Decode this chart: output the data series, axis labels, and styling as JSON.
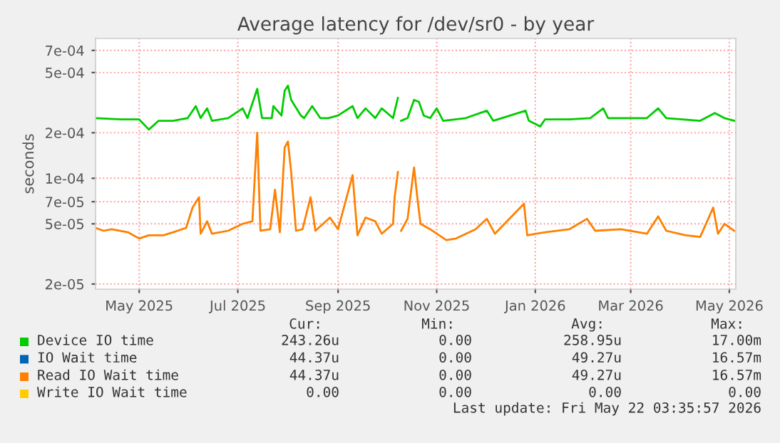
{
  "chart_data": {
    "type": "line",
    "title": "Average latency for /dev/sr0 - by year",
    "ylabel": "seconds",
    "log": "y",
    "grid": true,
    "legend": "bottom",
    "marker": "none",
    "line_style": "solid",
    "xlim": [
      "2025-04-19",
      "2026-05-20"
    ],
    "ylim": [
      1.85e-05,
      0.00084
    ],
    "xticks": [
      {
        "value": "2025-05-16",
        "label": "May 2025"
      },
      {
        "value": "2025-07-16",
        "label": "Jul 2025"
      },
      {
        "value": "2025-09-16",
        "label": "Sep 2025"
      },
      {
        "value": "2025-11-16",
        "label": "Nov 2025"
      },
      {
        "value": "2026-01-16",
        "label": "Jan 2026"
      },
      {
        "value": "2026-03-16",
        "label": "Mar 2026"
      },
      {
        "value": "2026-05-16",
        "label": "May 2026"
      }
    ],
    "yticks": [
      {
        "value": 2e-05,
        "label": "2e-05"
      },
      {
        "value": 5e-05,
        "label": "5e-05"
      },
      {
        "value": 7e-05,
        "label": "7e-05"
      },
      {
        "value": 0.0001,
        "label": "1e-04"
      },
      {
        "value": 0.0002,
        "label": "2e-04"
      },
      {
        "value": 0.0005,
        "label": "5e-04"
      },
      {
        "value": 0.0007,
        "label": "7e-04"
      }
    ],
    "series": [
      {
        "name": "Device IO time",
        "color": "#00cc00",
        "x": [
          "2025-04-19",
          "2025-05-05",
          "2025-05-16",
          "2025-05-22",
          "2025-05-28",
          "2025-06-06",
          "2025-06-15",
          "2025-06-20",
          "2025-06-23",
          "2025-06-27",
          "2025-06-30",
          "2025-07-10",
          "2025-07-19",
          "2025-07-22",
          "2025-07-28",
          "2025-07-31",
          "2025-08-06",
          "2025-08-07",
          "2025-08-12",
          "2025-08-14",
          "2025-08-16",
          "2025-08-18",
          "2025-08-24",
          "2025-08-26",
          "2025-08-31",
          "2025-09-05",
          "2025-09-10",
          "2025-09-16",
          "2025-09-25",
          "2025-09-28",
          "2025-10-03",
          "2025-10-09",
          "2025-10-13",
          "2025-10-20",
          "2025-10-23",
          "2025-10-24",
          "2025-10-25",
          "2025-10-29",
          "2025-11-02",
          "2025-11-05",
          "2025-11-08",
          "2025-11-12",
          "2025-11-16",
          "2025-11-20",
          "2025-12-04",
          "2025-12-17",
          "2025-12-21",
          "2026-01-10",
          "2026-01-12",
          "2026-01-19",
          "2026-01-22",
          "2026-02-06",
          "2026-02-19",
          "2026-02-27",
          "2026-03-02",
          "2026-03-26",
          "2026-04-02",
          "2026-04-07",
          "2026-04-28",
          "2026-05-07",
          "2026-05-13",
          "2026-05-19"
        ],
        "values": [
          0.00025,
          0.000245,
          0.000245,
          0.00021,
          0.00024,
          0.00024,
          0.00025,
          0.0003,
          0.00025,
          0.00029,
          0.00024,
          0.00025,
          0.00029,
          0.00025,
          0.00039,
          0.00025,
          0.00025,
          0.0003,
          0.00026,
          0.00038,
          0.00041,
          0.00033,
          0.00026,
          0.00025,
          0.0003,
          0.00025,
          0.00025,
          0.00026,
          0.0003,
          0.00025,
          0.00029,
          0.00025,
          0.00029,
          0.00025,
          0.00034,
          null,
          0.00024,
          0.00025,
          0.00033,
          0.00032,
          0.00026,
          0.00025,
          0.00029,
          0.00024,
          0.00025,
          0.00028,
          0.00024,
          0.00028,
          0.00024,
          0.00022,
          0.000245,
          0.000245,
          0.00025,
          0.00029,
          0.00025,
          0.00025,
          0.00029,
          0.00025,
          0.00024,
          0.00027,
          0.00025,
          0.00024
        ]
      },
      {
        "name": "IO Wait time",
        "color": "#0066b3"
      },
      {
        "name": "Read IO Wait time",
        "color": "#ff8000",
        "x": [
          "2025-04-19",
          "2025-04-24",
          "2025-04-29",
          "2025-05-09",
          "2025-05-16",
          "2025-05-22",
          "2025-05-31",
          "2025-06-06",
          "2025-06-14",
          "2025-06-18",
          "2025-06-22",
          "2025-06-23",
          "2025-06-27",
          "2025-06-30",
          "2025-07-10",
          "2025-07-19",
          "2025-07-25",
          "2025-07-28",
          "2025-07-30",
          "2025-08-05",
          "2025-08-08",
          "2025-08-11",
          "2025-08-14",
          "2025-08-16",
          "2025-08-18",
          "2025-08-21",
          "2025-08-25",
          "2025-08-30",
          "2025-09-02",
          "2025-09-11",
          "2025-09-16",
          "2025-09-25",
          "2025-09-28",
          "2025-10-03",
          "2025-10-09",
          "2025-10-13",
          "2025-10-20",
          "2025-10-21",
          "2025-10-23",
          "2025-10-24",
          "2025-10-25",
          "2025-10-29",
          "2025-11-02",
          "2025-11-04",
          "2025-11-06",
          "2025-11-12",
          "2025-11-22",
          "2025-11-28",
          "2025-12-10",
          "2025-12-17",
          "2025-12-22",
          "2026-01-09",
          "2026-01-11",
          "2026-01-22",
          "2026-02-06",
          "2026-02-17",
          "2026-02-22",
          "2026-03-10",
          "2026-03-26",
          "2026-04-02",
          "2026-04-07",
          "2026-04-19",
          "2026-04-28",
          "2026-05-06",
          "2026-05-09",
          "2026-05-13",
          "2026-05-19"
        ],
        "values": [
          4.7e-05,
          4.5e-05,
          4.6e-05,
          4.4e-05,
          4e-05,
          4.2e-05,
          4.2e-05,
          4.4e-05,
          4.7e-05,
          6.4e-05,
          7.5e-05,
          4.3e-05,
          5.2e-05,
          4.3e-05,
          4.5e-05,
          5e-05,
          5.2e-05,
          0.0002,
          4.5e-05,
          4.6e-05,
          8.4e-05,
          4.4e-05,
          0.00016,
          0.000175,
          0.00011,
          4.5e-05,
          4.6e-05,
          7.5e-05,
          4.5e-05,
          5.5e-05,
          4.6e-05,
          0.000105,
          4.2e-05,
          5.5e-05,
          5.2e-05,
          4.3e-05,
          5e-05,
          7.5e-05,
          0.00011,
          null,
          4.5e-05,
          5.4e-05,
          0.000118,
          7.5e-05,
          5e-05,
          4.6e-05,
          3.9e-05,
          4e-05,
          4.6e-05,
          5.4e-05,
          4.3e-05,
          6.8e-05,
          4.2e-05,
          4.4e-05,
          4.6e-05,
          5.4e-05,
          4.5e-05,
          4.6e-05,
          4.3e-05,
          5.6e-05,
          4.5e-05,
          4.2e-05,
          4.1e-05,
          6.4e-05,
          4.3e-05,
          5e-05,
          4.5e-05
        ]
      },
      {
        "name": "Write IO Wait time",
        "color": "#ffcc00"
      }
    ],
    "annotations": [
      "Cur:",
      "Min:",
      "Avg:",
      "Max:",
      "243.26u",
      "0.00",
      "258.95u",
      "17.00m",
      "44.37u",
      "0.00",
      "49.27u",
      "16.57m",
      "44.37u",
      "0.00",
      "49.27u",
      "16.57m",
      "0.00",
      "0.00",
      "0.00",
      "0.00",
      "Last update: Fri May 22 03:35:57 2026"
    ]
  }
}
